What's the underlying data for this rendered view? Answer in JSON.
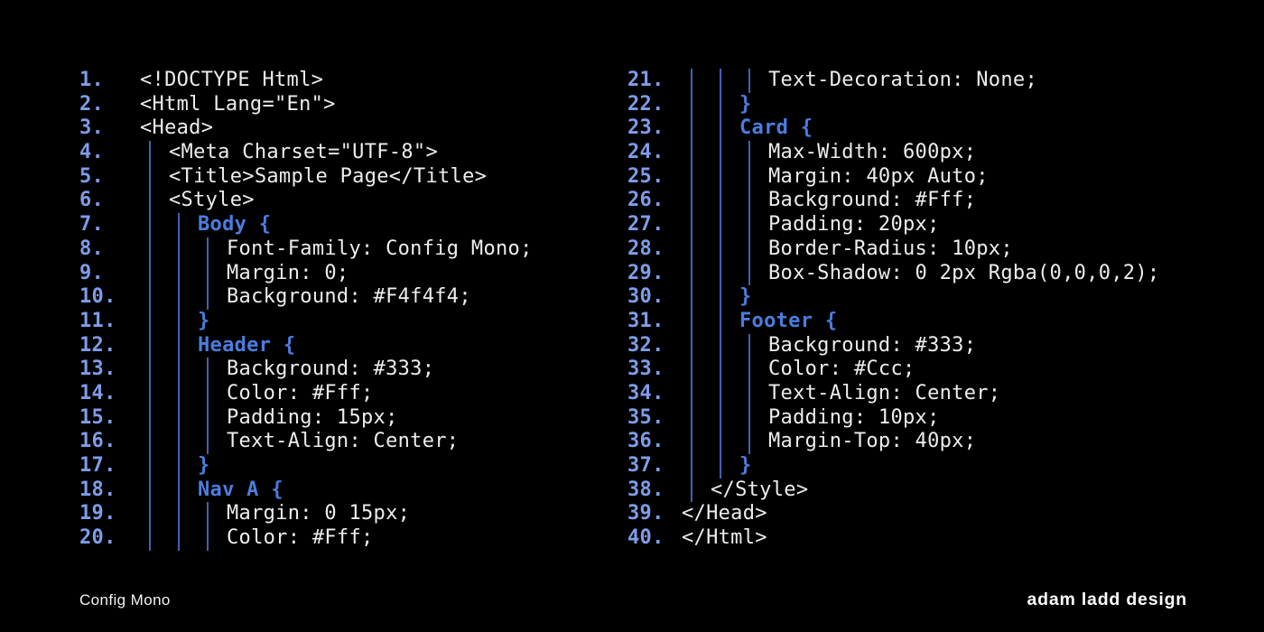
{
  "colors": {
    "background": "#000000",
    "line_number_blue": "#7e9de9",
    "keyword_blue": "#4b7de0",
    "indent_guide_blue": "#4062b4",
    "code_text": "#ededed",
    "footer_text": "#f2f2f2"
  },
  "footer": {
    "left_label": "Config Mono",
    "right_label": "adam ladd design"
  },
  "code": {
    "left_lines": [
      {
        "num": "1.",
        "indent": 0,
        "keyword": false,
        "text": "<!DOCTYPE Html>"
      },
      {
        "num": "2.",
        "indent": 0,
        "keyword": false,
        "text": "<Html Lang=\"En\">"
      },
      {
        "num": "3.",
        "indent": 0,
        "keyword": false,
        "text": "<Head>"
      },
      {
        "num": "4.",
        "indent": 1,
        "keyword": false,
        "text": "<Meta Charset=\"UTF-8\">"
      },
      {
        "num": "5.",
        "indent": 1,
        "keyword": false,
        "text": "<Title>Sample Page</Title>"
      },
      {
        "num": "6.",
        "indent": 1,
        "keyword": false,
        "text": "<Style>"
      },
      {
        "num": "7.",
        "indent": 2,
        "keyword": true,
        "text": "Body {"
      },
      {
        "num": "8.",
        "indent": 3,
        "keyword": false,
        "text": "Font-Family: Config Mono;"
      },
      {
        "num": "9.",
        "indent": 3,
        "keyword": false,
        "text": "Margin: 0;"
      },
      {
        "num": "10.",
        "indent": 3,
        "keyword": false,
        "text": "Background: #F4f4f4;"
      },
      {
        "num": "11.",
        "indent": 2,
        "keyword": true,
        "text": "}"
      },
      {
        "num": "12.",
        "indent": 2,
        "keyword": true,
        "text": "Header {"
      },
      {
        "num": "13.",
        "indent": 3,
        "keyword": false,
        "text": "Background: #333;"
      },
      {
        "num": "14.",
        "indent": 3,
        "keyword": false,
        "text": "Color: #Fff;"
      },
      {
        "num": "15.",
        "indent": 3,
        "keyword": false,
        "text": "Padding: 15px;"
      },
      {
        "num": "16.",
        "indent": 3,
        "keyword": false,
        "text": "Text-Align: Center;"
      },
      {
        "num": "17.",
        "indent": 2,
        "keyword": true,
        "text": "}"
      },
      {
        "num": "18.",
        "indent": 2,
        "keyword": true,
        "text": "Nav A {"
      },
      {
        "num": "19.",
        "indent": 3,
        "keyword": false,
        "text": "Margin: 0 15px;"
      },
      {
        "num": "20.",
        "indent": 3,
        "keyword": false,
        "text": "Color: #Fff;"
      }
    ],
    "right_lines": [
      {
        "num": "21.",
        "indent": 3,
        "keyword": false,
        "text": "Text-Decoration: None;"
      },
      {
        "num": "22.",
        "indent": 2,
        "keyword": true,
        "text": "}"
      },
      {
        "num": "23.",
        "indent": 2,
        "keyword": true,
        "text": "Card {"
      },
      {
        "num": "24.",
        "indent": 3,
        "keyword": false,
        "text": "Max-Width: 600px;"
      },
      {
        "num": "25.",
        "indent": 3,
        "keyword": false,
        "text": "Margin: 40px Auto;"
      },
      {
        "num": "26.",
        "indent": 3,
        "keyword": false,
        "text": "Background: #Fff;"
      },
      {
        "num": "27.",
        "indent": 3,
        "keyword": false,
        "text": "Padding: 20px;"
      },
      {
        "num": "28.",
        "indent": 3,
        "keyword": false,
        "text": "Border-Radius: 10px;"
      },
      {
        "num": "29.",
        "indent": 3,
        "keyword": false,
        "text": "Box-Shadow: 0 2px Rgba(0,0,0,2);"
      },
      {
        "num": "30.",
        "indent": 2,
        "keyword": true,
        "text": "}"
      },
      {
        "num": "31.",
        "indent": 2,
        "keyword": true,
        "text": "Footer {"
      },
      {
        "num": "32.",
        "indent": 3,
        "keyword": false,
        "text": "Background: #333;"
      },
      {
        "num": "33.",
        "indent": 3,
        "keyword": false,
        "text": "Color: #Ccc;"
      },
      {
        "num": "34.",
        "indent": 3,
        "keyword": false,
        "text": "Text-Align: Center;"
      },
      {
        "num": "35.",
        "indent": 3,
        "keyword": false,
        "text": "Padding: 10px;"
      },
      {
        "num": "36.",
        "indent": 3,
        "keyword": false,
        "text": "Margin-Top: 40px;"
      },
      {
        "num": "37.",
        "indent": 2,
        "keyword": true,
        "text": "}"
      },
      {
        "num": "38.",
        "indent": 1,
        "keyword": false,
        "text": "</Style>"
      },
      {
        "num": "39.",
        "indent": 0,
        "keyword": false,
        "text": "</Head>"
      },
      {
        "num": "40.",
        "indent": 0,
        "keyword": false,
        "text": "</Html>"
      }
    ]
  }
}
